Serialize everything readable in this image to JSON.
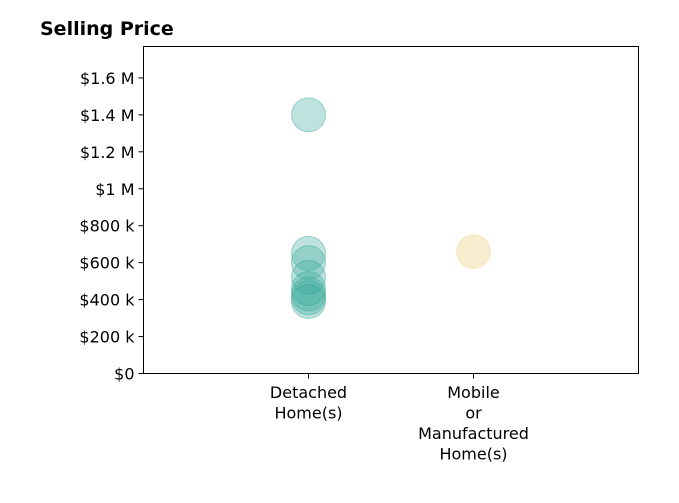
{
  "chart_data": {
    "type": "scatter",
    "title": "Selling Price",
    "xlabel": "",
    "ylabel": "",
    "categories": [
      [
        "Detached",
        "Home(s)"
      ],
      [
        "Mobile",
        "or",
        "Manufactured",
        "Home(s)"
      ]
    ],
    "yticks": [
      0,
      200000,
      400000,
      600000,
      800000,
      1000000,
      1200000,
      1400000,
      1600000
    ],
    "ytick_labels": [
      "$0",
      "$200 k",
      "$400 k",
      "$600 k",
      "$800 k",
      "$1 M",
      "$1.2 M",
      "$1.4 M",
      "$1.6 M"
    ],
    "ylim": [
      0,
      1770000
    ],
    "grid": false,
    "series": [
      {
        "category_index": 0,
        "color": "#3aa99a",
        "values": [
          1400000,
          650000,
          600000,
          520000,
          460000,
          430000,
          410000,
          390000
        ]
      },
      {
        "category_index": 1,
        "color": "#f2d9a0",
        "values": [
          660000
        ]
      }
    ]
  }
}
